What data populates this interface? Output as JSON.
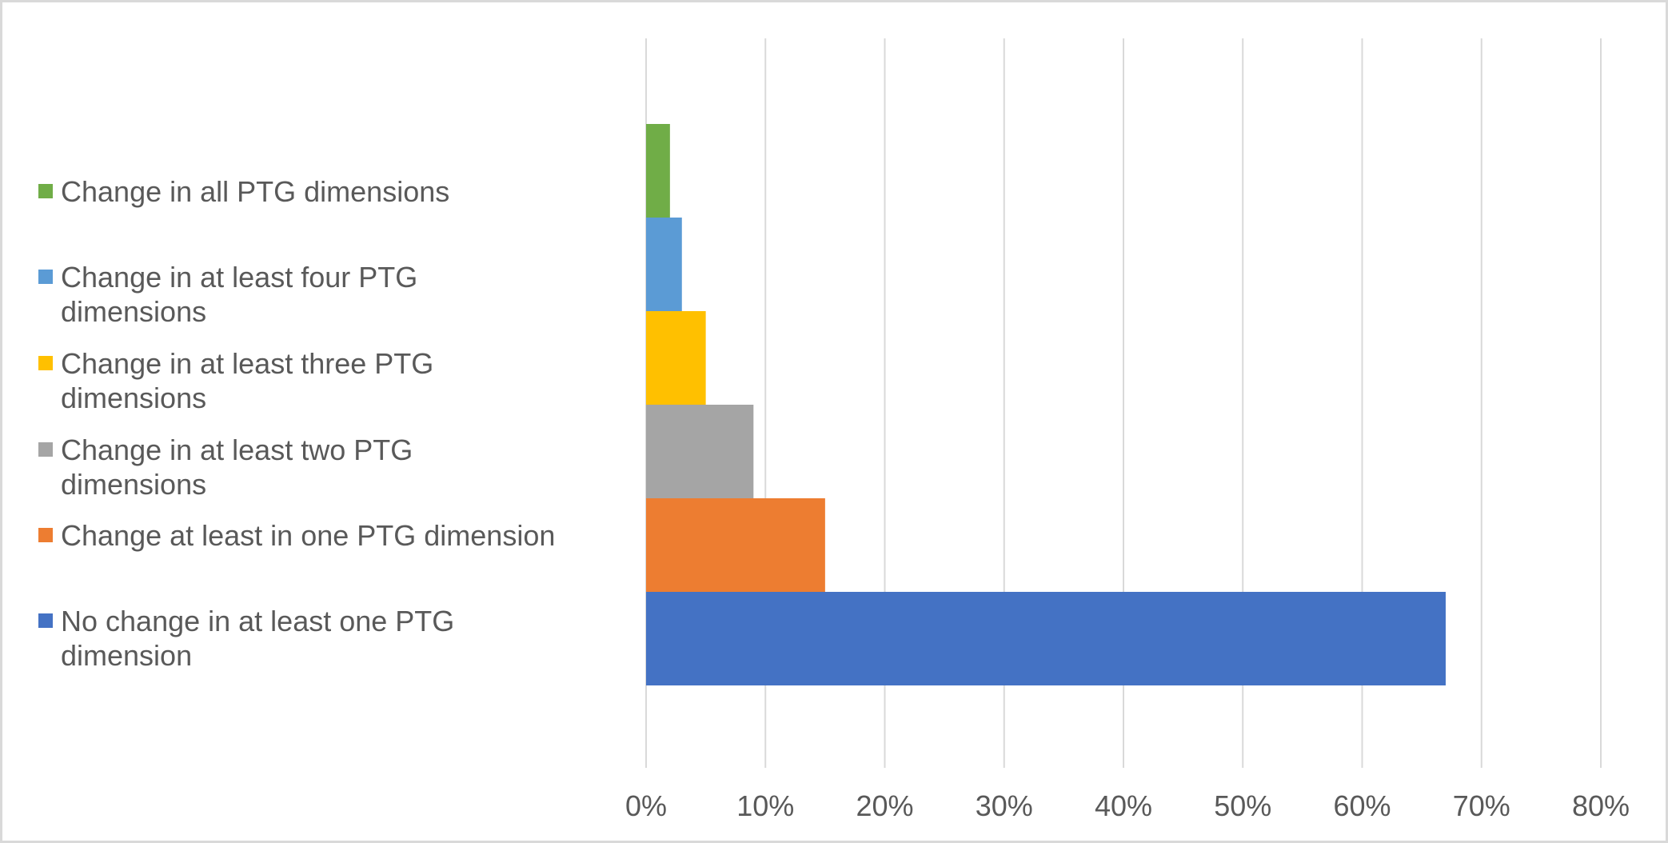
{
  "chart_data": {
    "type": "bar",
    "orientation": "horizontal",
    "title": "",
    "xlabel": "",
    "ylabel": "",
    "xlim": [
      0,
      80
    ],
    "x_ticks": [
      "0%",
      "10%",
      "20%",
      "30%",
      "40%",
      "50%",
      "60%",
      "70%",
      "80%"
    ],
    "grid": true,
    "legend_position": "left",
    "series": [
      {
        "name": "Change in all PTG dimensions",
        "value": 2,
        "color": "#70ad47"
      },
      {
        "name": "Change in at least four PTG dimensions",
        "value": 3,
        "color": "#5b9bd5"
      },
      {
        "name": "Change in at least three PTG dimensions",
        "value": 5,
        "color": "#ffc000"
      },
      {
        "name": "Change in at least two PTG dimensions",
        "value": 9,
        "color": "#a5a5a5"
      },
      {
        "name": "Change at least in one PTG dimension",
        "value": 15,
        "color": "#ed7d31"
      },
      {
        "name": "No change in at least one PTG dimension",
        "value": 67,
        "color": "#4472c4"
      }
    ]
  }
}
